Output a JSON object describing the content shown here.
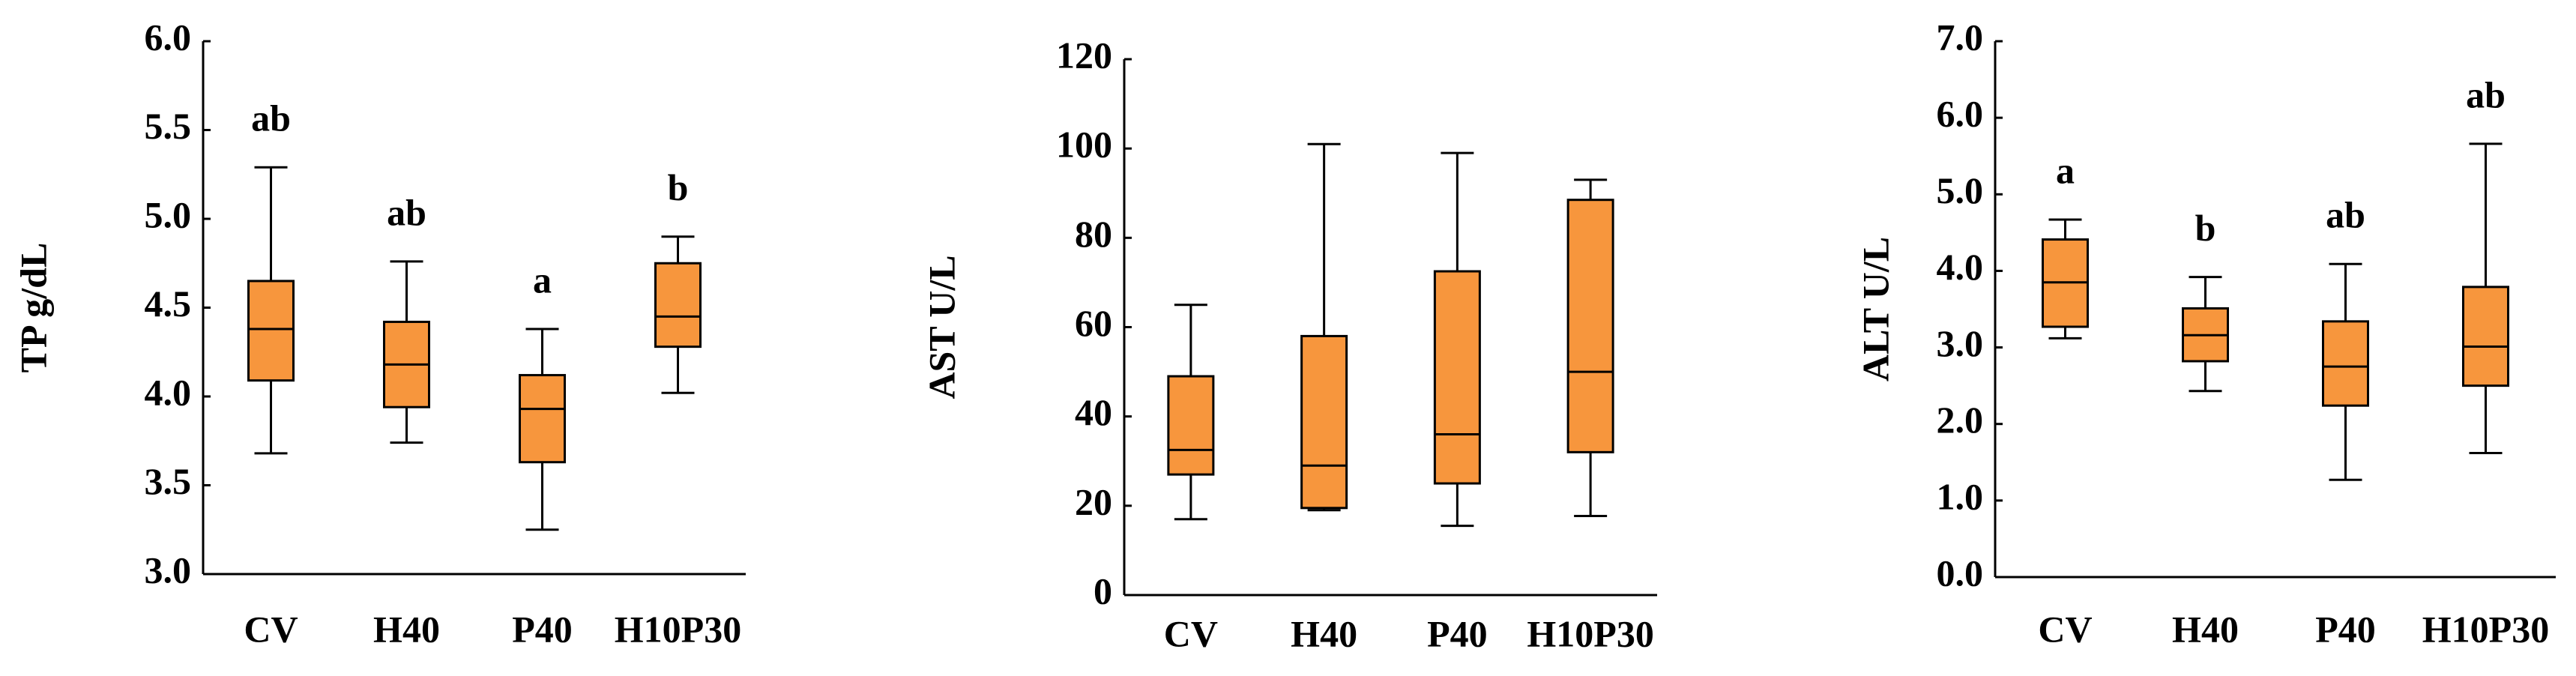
{
  "chart_data": [
    {
      "type": "box",
      "y_label": "TP g/dL",
      "color": "#f7963d",
      "categories": [
        "CV",
        "H40",
        "P40",
        "H10P30"
      ],
      "boxes": [
        {
          "min": 3.68,
          "q1": 4.09,
          "median": 4.38,
          "q3": 4.65,
          "max": 5.29
        },
        {
          "min": 3.74,
          "q1": 3.94,
          "median": 4.18,
          "q3": 4.42,
          "max": 4.76
        },
        {
          "min": 3.25,
          "q1": 3.63,
          "median": 3.93,
          "q3": 4.12,
          "max": 4.38
        },
        {
          "min": 4.02,
          "q1": 4.28,
          "median": 4.45,
          "q3": 4.75,
          "max": 4.9
        }
      ],
      "annotations": [
        "ab",
        "ab",
        "a",
        "b"
      ],
      "ylim": [
        3,
        6
      ],
      "yticks": [
        {
          "value": 3,
          "label": "3.0"
        },
        3.5,
        {
          "value": 4,
          "label": "4.0"
        },
        4.5,
        {
          "value": 5,
          "label": "5.0"
        },
        5.5,
        {
          "value": 6,
          "label": "6.0"
        }
      ]
    },
    {
      "type": "box",
      "y_label": "AST U/L",
      "color": "#f7963d",
      "categories": [
        "CV",
        "H40",
        "P40",
        "H10P30"
      ],
      "boxes": [
        {
          "min": 17,
          "q1": 27,
          "median": 32.5,
          "q3": 49,
          "max": 65
        },
        {
          "min": 19,
          "q1": 19.5,
          "median": 29,
          "q3": 58,
          "max": 101
        },
        {
          "min": 15.5,
          "q1": 25,
          "median": 36,
          "q3": 72.5,
          "max": 99
        },
        {
          "min": 17.7,
          "q1": 32,
          "median": 50,
          "q3": 88.5,
          "max": 93
        }
      ],
      "ylim": [
        0,
        120
      ],
      "yticks": [
        0,
        20,
        40,
        60,
        80,
        100,
        120
      ]
    },
    {
      "type": "box",
      "y_label": "ALT U/L",
      "color": "#f7963d",
      "categories": [
        "CV",
        "H40",
        "P40",
        "H10P30"
      ],
      "boxes": [
        {
          "min": 3.12,
          "q1": 3.27,
          "median": 3.85,
          "q3": 4.41,
          "max": 4.67
        },
        {
          "min": 2.43,
          "q1": 2.82,
          "median": 3.16,
          "q3": 3.51,
          "max": 3.92
        },
        {
          "min": 1.27,
          "q1": 2.24,
          "median": 2.75,
          "q3": 3.34,
          "max": 4.09
        },
        {
          "min": 1.62,
          "q1": 2.5,
          "median": 3.01,
          "q3": 3.79,
          "max": 5.66
        }
      ],
      "annotations": [
        "a",
        "b",
        "ab",
        "ab"
      ],
      "ylim": [
        0,
        7
      ],
      "yticks": [
        {
          "value": 0,
          "label": "0.0"
        },
        {
          "value": 1,
          "label": "1.0"
        },
        {
          "value": 2,
          "label": "2.0"
        },
        {
          "value": 3,
          "label": "3.0"
        },
        {
          "value": 4,
          "label": "4.0"
        },
        {
          "value": 5,
          "label": "5.0"
        },
        {
          "value": 6,
          "label": "6.0"
        },
        {
          "value": 7,
          "label": "7.0"
        }
      ]
    }
  ]
}
